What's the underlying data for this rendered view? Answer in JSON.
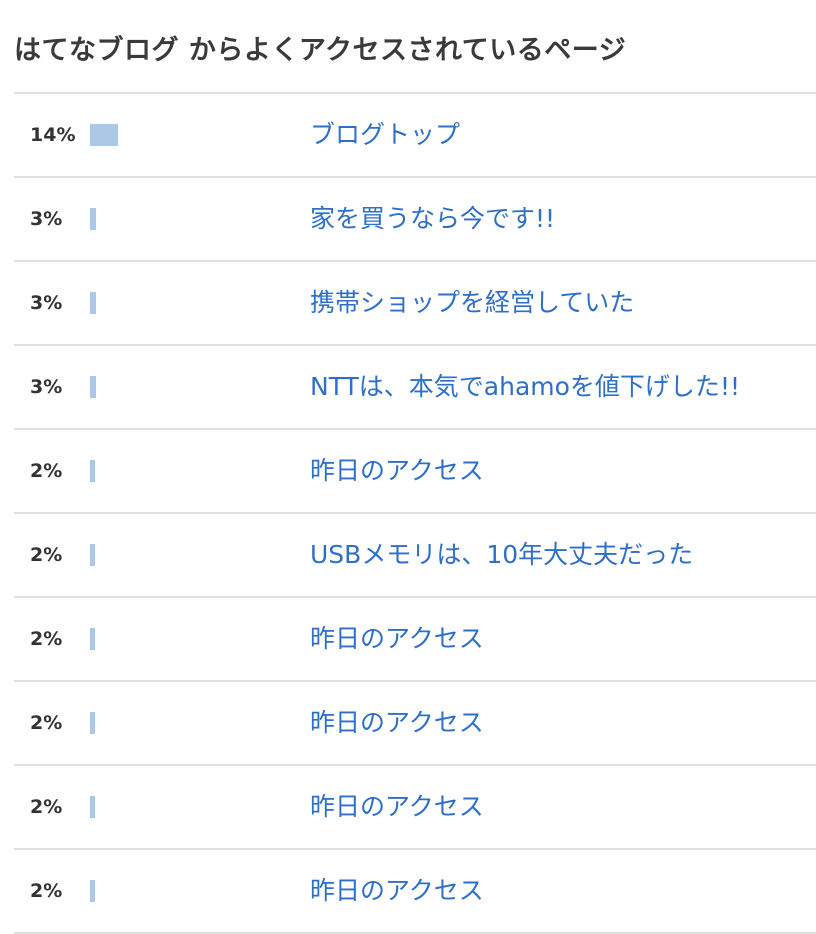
{
  "header": {
    "title": "はてなブログ からよくアクセスされているページ"
  },
  "colors": {
    "bar": "#adc8e6",
    "link": "#2e6fc8",
    "text": "#333333",
    "divider": "#e0e0e0"
  },
  "pages": [
    {
      "percent": "14%",
      "share": 14,
      "title": "ブログトップ"
    },
    {
      "percent": "3%",
      "share": 3,
      "title": "家を買うなら今です!!"
    },
    {
      "percent": "3%",
      "share": 3,
      "title": "携帯ショップを経営していた"
    },
    {
      "percent": "3%",
      "share": 3,
      "title": "NTTは、本気でahamoを値下げした!!"
    },
    {
      "percent": "2%",
      "share": 2,
      "title": "昨日のアクセス"
    },
    {
      "percent": "2%",
      "share": 2,
      "title": "USBメモリは、10年大丈夫だった"
    },
    {
      "percent": "2%",
      "share": 2,
      "title": "昨日のアクセス"
    },
    {
      "percent": "2%",
      "share": 2,
      "title": "昨日のアクセス"
    },
    {
      "percent": "2%",
      "share": 2,
      "title": "昨日のアクセス"
    },
    {
      "percent": "2%",
      "share": 2,
      "title": "昨日のアクセス"
    }
  ]
}
